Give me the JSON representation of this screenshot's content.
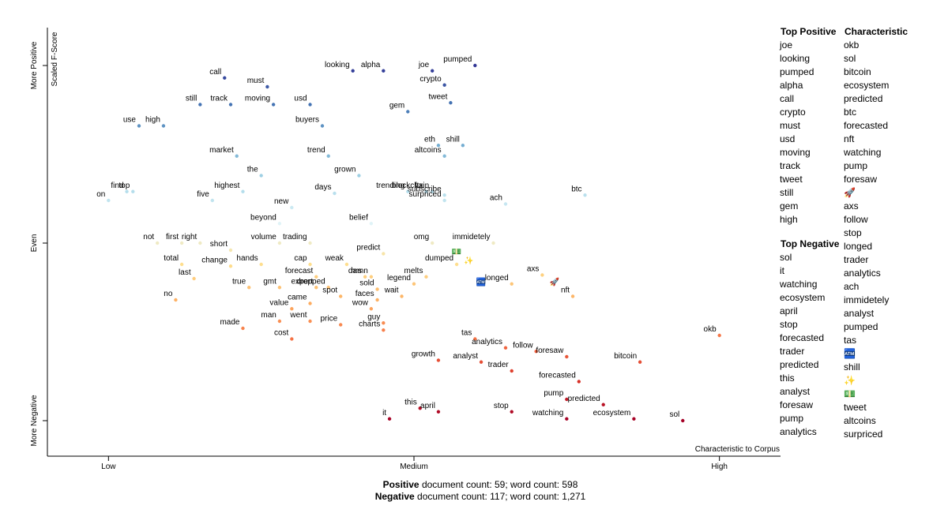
{
  "chart_data": {
    "type": "scatter",
    "x_label": "Characteristic to Corpus",
    "y_label": "Scaled F-Score",
    "labels": [
      "looking",
      "alpha",
      "joe",
      "pumped",
      "crypto",
      "call",
      "must",
      "still",
      "track",
      "moving",
      "usd",
      "tweet",
      "gem",
      "use",
      "high",
      "buyers",
      "market",
      "trend",
      "eth",
      "shill",
      "altcoins",
      "the",
      "grown",
      "trending",
      "ftx",
      "blockchain",
      "subscribe",
      "surpriced",
      "days",
      "highest",
      "find",
      "top",
      "on",
      "five",
      "new",
      "ach",
      "btc",
      "beyond",
      "belief",
      "not",
      "first",
      "right",
      "short",
      "volume",
      "trading",
      "omg",
      "immidetely",
      "predict",
      "total",
      "change",
      "hands",
      "cap",
      "weak",
      "dumped",
      "last",
      "forecast",
      "hrs",
      "melts",
      "true",
      "gmt",
      "expert",
      "dropped",
      "damn",
      "sold",
      "legend",
      "longed",
      "axs",
      "nft",
      "no",
      "spot",
      "wait",
      "faces",
      "value",
      "came",
      "wow",
      "made",
      "man",
      "went",
      "price",
      "guy",
      "charts",
      "cost",
      "okb",
      "tas",
      "analytics",
      "follow",
      "foresaw",
      "growth",
      "analyst",
      "bitcoin",
      "trader",
      "forecasted",
      "pump",
      "predicted",
      "this",
      "april",
      "stop",
      "it",
      "watching",
      "ecosystem",
      "sol",
      "🚀",
      "💵",
      "✨",
      "🏧"
    ],
    "x": [
      0.4,
      0.45,
      0.53,
      0.6,
      0.55,
      0.19,
      0.26,
      0.15,
      0.2,
      0.27,
      0.33,
      0.56,
      0.49,
      0.05,
      0.09,
      0.35,
      0.21,
      0.36,
      0.54,
      0.58,
      0.55,
      0.25,
      0.41,
      0.49,
      0.52,
      0.53,
      0.55,
      0.55,
      0.37,
      0.22,
      0.03,
      0.04,
      0.0,
      0.17,
      0.3,
      0.65,
      0.78,
      0.28,
      0.43,
      0.08,
      0.12,
      0.15,
      0.2,
      0.28,
      0.33,
      0.53,
      0.63,
      0.45,
      0.12,
      0.2,
      0.25,
      0.33,
      0.39,
      0.57,
      0.14,
      0.34,
      0.42,
      0.52,
      0.23,
      0.28,
      0.34,
      0.36,
      0.43,
      0.44,
      0.5,
      0.66,
      0.71,
      0.76,
      0.11,
      0.38,
      0.48,
      0.44,
      0.3,
      0.33,
      0.43,
      0.22,
      0.28,
      0.33,
      0.38,
      0.45,
      0.45,
      0.3,
      1.0,
      0.6,
      0.65,
      0.7,
      0.75,
      0.54,
      0.61,
      0.87,
      0.66,
      0.77,
      0.75,
      0.81,
      0.51,
      0.54,
      0.66,
      0.46,
      0.75,
      0.86,
      0.94,
      0.73,
      0.57,
      0.59,
      0.61
    ],
    "values": [
      0.97,
      0.97,
      0.97,
      1.0,
      0.89,
      0.93,
      0.88,
      0.78,
      0.78,
      0.78,
      0.78,
      0.79,
      0.74,
      0.66,
      0.66,
      0.66,
      0.49,
      0.49,
      0.55,
      0.55,
      0.49,
      0.38,
      0.38,
      0.29,
      0.29,
      0.29,
      0.27,
      0.24,
      0.28,
      0.29,
      0.29,
      0.29,
      0.24,
      0.24,
      0.2,
      0.22,
      0.27,
      0.11,
      0.11,
      0,
      0,
      0,
      -0.04,
      0,
      0,
      0,
      0,
      -0.06,
      -0.12,
      -0.13,
      -0.12,
      -0.12,
      -0.12,
      -0.12,
      -0.2,
      -0.19,
      -0.19,
      -0.19,
      -0.25,
      -0.25,
      -0.25,
      -0.25,
      -0.19,
      -0.26,
      -0.23,
      -0.23,
      -0.18,
      -0.3,
      -0.32,
      -0.3,
      -0.3,
      -0.32,
      -0.37,
      -0.34,
      -0.37,
      -0.48,
      -0.44,
      -0.44,
      -0.46,
      -0.45,
      -0.49,
      -0.54,
      -0.52,
      -0.54,
      -0.59,
      -0.61,
      -0.64,
      -0.66,
      -0.67,
      -0.67,
      -0.72,
      -0.78,
      -0.88,
      -0.91,
      -0.93,
      -0.95,
      -0.95,
      -0.99,
      -0.99,
      -0.99,
      -1.0,
      -0.21,
      -0.04,
      -0.09,
      -0.21
    ],
    "xlim": [
      -0.1,
      1.1
    ],
    "ylim": [
      -1.2,
      1.2
    ],
    "xticks": [
      {
        "value": 0,
        "label": "Low"
      },
      {
        "value": 0.5,
        "label": "Medium"
      },
      {
        "value": 1,
        "label": "High"
      }
    ],
    "yticks": [
      {
        "value": 1,
        "label": "More Positive"
      },
      {
        "value": 0,
        "label": "Even"
      },
      {
        "value": -1,
        "label": "More Negative"
      }
    ],
    "colorscale": [
      "#a50026",
      "#d73027",
      "#f46d43",
      "#fdae61",
      "#fee090",
      "#e0f3f8",
      "#abd9e9",
      "#74add1",
      "#4575b4",
      "#313695"
    ]
  },
  "side_panel": {
    "top_positive": {
      "title": "Top Positive",
      "items": [
        "joe",
        "looking",
        "pumped",
        "alpha",
        "call",
        "crypto",
        "must",
        "usd",
        "moving",
        "track",
        "tweet",
        "still",
        "gem",
        "high"
      ]
    },
    "characteristic": {
      "title": "Characteristic",
      "items": [
        "okb",
        "sol",
        "bitcoin",
        "ecosystem",
        "predicted",
        "btc",
        "forecasted",
        "nft",
        "watching",
        "pump",
        "foresaw",
        "🚀",
        "axs",
        "follow",
        "stop",
        "longed",
        "trader",
        "analytics",
        "ach",
        "immidetely",
        "analyst",
        "pumped",
        "tas",
        "🏧",
        "shill",
        "✨",
        "💵",
        "tweet",
        "altcoins",
        "surpriced"
      ]
    },
    "top_negative": {
      "title": "Top Negative",
      "items": [
        "sol",
        "it",
        "watching",
        "ecosystem",
        "april",
        "stop",
        "forecasted",
        "trader",
        "predicted",
        "this",
        "analyst",
        "foresaw",
        "pump",
        "analytics"
      ]
    }
  },
  "footer": [
    {
      "bold": "Positive",
      "text": " document count: 59; word count: 598"
    },
    {
      "bold": "Negative",
      "text": " document count: 117; word count: 1,271"
    }
  ]
}
